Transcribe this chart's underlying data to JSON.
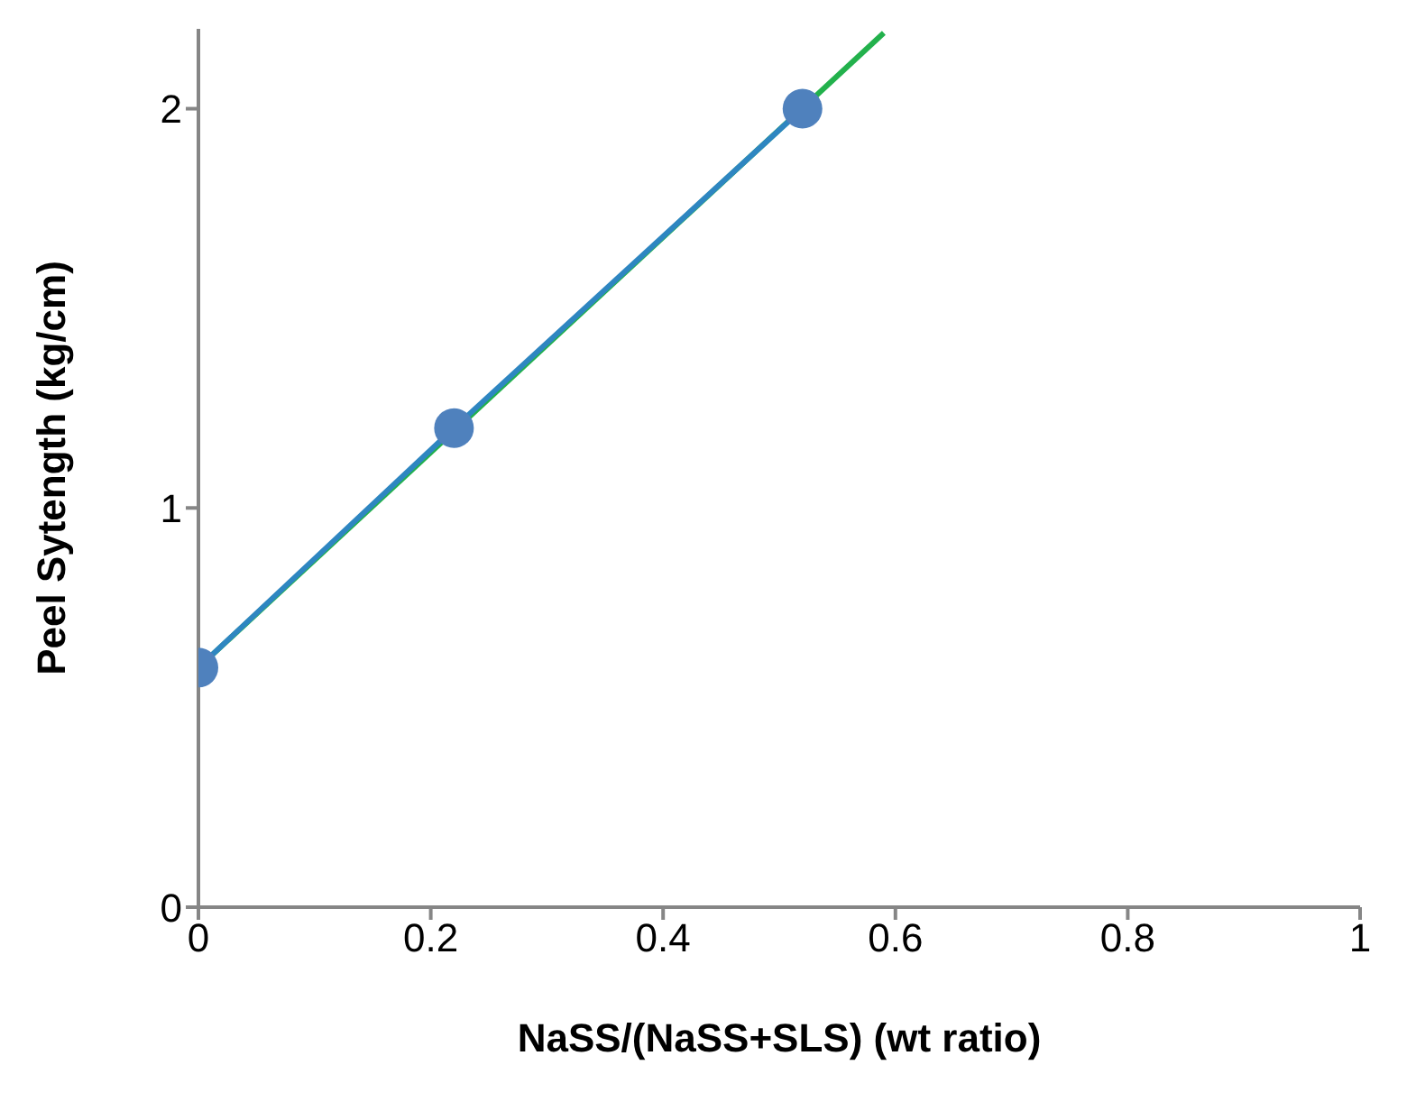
{
  "chart_data": {
    "type": "scatter",
    "xlabel": "NaSS/(NaSS+SLS) (wt ratio)",
    "ylabel": "Peel Sytength (kg/cm)",
    "x": [
      0,
      0.22,
      0.52
    ],
    "series": [
      {
        "type": "line",
        "color": "#22b14c",
        "x": [
          0,
          0.59
        ],
        "values": [
          0.6,
          2.19
        ],
        "marker": "none"
      },
      {
        "type": "line",
        "color": "#2e86c1",
        "values": [
          0.6,
          1.2,
          2.0
        ],
        "marker": "none"
      },
      {
        "color": "#4f81bd",
        "values": [
          0.6,
          1.2,
          2.0
        ],
        "marker": "circle"
      }
    ],
    "xlim": [
      0,
      1
    ],
    "xticks": [
      0,
      0.2,
      0.4,
      0.6,
      0.8,
      1
    ],
    "ylim": [
      0,
      2.2
    ],
    "yticks": [
      0,
      1,
      2
    ],
    "grid": false
  }
}
